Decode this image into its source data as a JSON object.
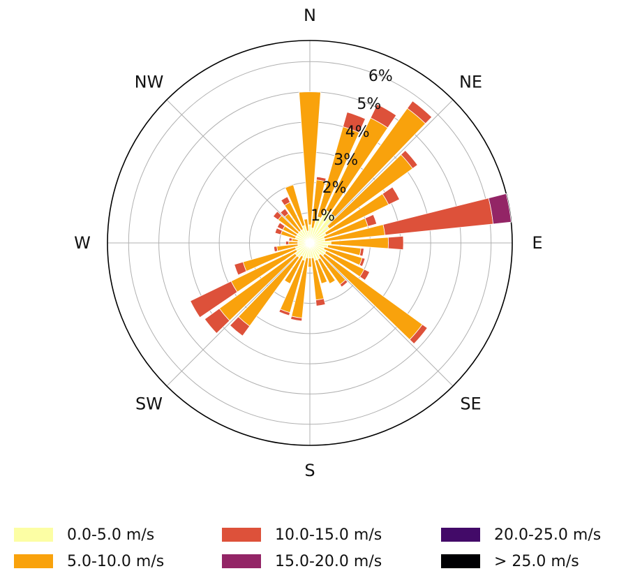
{
  "chart_data": {
    "type": "windrose",
    "directions": [
      "N",
      "NE",
      "E",
      "SE",
      "S",
      "SW",
      "W",
      "NW"
    ],
    "radial_ticks": [
      "1%",
      "2%",
      "3%",
      "4%",
      "5%",
      "6%"
    ],
    "radial_max": 6.7,
    "bins": [
      {
        "label": "0.0-5.0 m/s",
        "color": "#fcfea4"
      },
      {
        "label": "5.0-10.0 m/s",
        "color": "#f9a20c"
      },
      {
        "label": "10.0-15.0 m/s",
        "color": "#dd513a"
      },
      {
        "label": "15.0-20.0 m/s",
        "color": "#932566"
      },
      {
        "label": "20.0-25.0 m/s",
        "color": "#420a68"
      },
      {
        "label": "> 25.0 m/s",
        "color": "#000003"
      }
    ],
    "sector_width_deg": 10,
    "sectors": [
      {
        "angle": 0,
        "values": [
          0.6,
          4.4,
          0.0,
          0,
          0,
          0
        ]
      },
      {
        "angle": 10,
        "values": [
          0.5,
          1.6,
          0.1,
          0,
          0,
          0
        ]
      },
      {
        "angle": 20,
        "values": [
          0.9,
          3.1,
          0.5,
          0,
          0,
          0
        ]
      },
      {
        "angle": 30,
        "values": [
          1.2,
          3.4,
          0.5,
          0,
          0,
          0
        ]
      },
      {
        "angle": 40,
        "values": [
          1.2,
          4.3,
          0.3,
          0,
          0,
          0
        ]
      },
      {
        "angle": 50,
        "values": [
          0.8,
          3.4,
          0.2,
          0,
          0,
          0
        ]
      },
      {
        "angle": 60,
        "values": [
          0.6,
          2.3,
          0.4,
          0,
          0,
          0
        ]
      },
      {
        "angle": 70,
        "values": [
          0.5,
          1.5,
          0.3,
          0,
          0,
          0
        ]
      },
      {
        "angle": 80,
        "values": [
          0.5,
          2.0,
          3.6,
          0.6,
          0,
          0
        ]
      },
      {
        "angle": 90,
        "values": [
          0.7,
          1.9,
          0.5,
          0,
          0,
          0
        ]
      },
      {
        "angle": 100,
        "values": [
          0.6,
          1.1,
          0.1,
          0,
          0,
          0
        ]
      },
      {
        "angle": 110,
        "values": [
          0.5,
          1.3,
          0.1,
          0,
          0,
          0
        ]
      },
      {
        "angle": 120,
        "values": [
          0.6,
          1.4,
          0.2,
          0,
          0,
          0
        ]
      },
      {
        "angle": 130,
        "values": [
          0.6,
          4.0,
          0.2,
          0,
          0,
          0
        ]
      },
      {
        "angle": 140,
        "values": [
          0.5,
          1.2,
          0.1,
          0,
          0,
          0
        ]
      },
      {
        "angle": 150,
        "values": [
          0.6,
          0.9,
          0.0,
          0,
          0,
          0
        ]
      },
      {
        "angle": 160,
        "values": [
          0.6,
          0.8,
          0.0,
          0,
          0,
          0
        ]
      },
      {
        "angle": 170,
        "values": [
          0.5,
          1.4,
          0.2,
          0,
          0,
          0
        ]
      },
      {
        "angle": 180,
        "values": [
          0.5,
          0.3,
          0.0,
          0,
          0,
          0
        ]
      },
      {
        "angle": 190,
        "values": [
          0.5,
          2.0,
          0.1,
          0,
          0,
          0
        ]
      },
      {
        "angle": 200,
        "values": [
          0.6,
          1.8,
          0.1,
          0,
          0,
          0
        ]
      },
      {
        "angle": 210,
        "values": [
          0.5,
          1.0,
          0.0,
          0,
          0,
          0
        ]
      },
      {
        "angle": 220,
        "values": [
          0.6,
          2.8,
          0.4,
          0,
          0,
          0
        ]
      },
      {
        "angle": 230,
        "values": [
          0.6,
          3.1,
          0.6,
          0,
          0,
          0
        ]
      },
      {
        "angle": 240,
        "values": [
          0.5,
          2.4,
          1.5,
          0,
          0,
          0
        ]
      },
      {
        "angle": 250,
        "values": [
          0.5,
          1.8,
          0.3,
          0,
          0,
          0
        ]
      },
      {
        "angle": 260,
        "values": [
          0.4,
          0.7,
          0.1,
          0,
          0,
          0
        ]
      },
      {
        "angle": 270,
        "values": [
          0.4,
          0.3,
          0.1,
          0,
          0,
          0
        ]
      },
      {
        "angle": 280,
        "values": [
          0.4,
          0.2,
          0.1,
          0,
          0,
          0
        ]
      },
      {
        "angle": 290,
        "values": [
          0.5,
          0.5,
          0.2,
          0,
          0,
          0
        ]
      },
      {
        "angle": 300,
        "values": [
          0.5,
          0.5,
          0.2,
          0,
          0,
          0
        ]
      },
      {
        "angle": 310,
        "values": [
          0.5,
          0.8,
          0.2,
          0,
          0,
          0
        ]
      },
      {
        "angle": 320,
        "values": [
          0.5,
          0.7,
          0.2,
          0,
          0,
          0
        ]
      },
      {
        "angle": 330,
        "values": [
          0.5,
          1.0,
          0.2,
          0,
          0,
          0
        ]
      },
      {
        "angle": 340,
        "values": [
          0.6,
          1.4,
          0.0,
          0,
          0,
          0
        ]
      },
      {
        "angle": 350,
        "values": [
          0.4,
          0.4,
          0.0,
          0,
          0,
          0
        ]
      }
    ]
  }
}
